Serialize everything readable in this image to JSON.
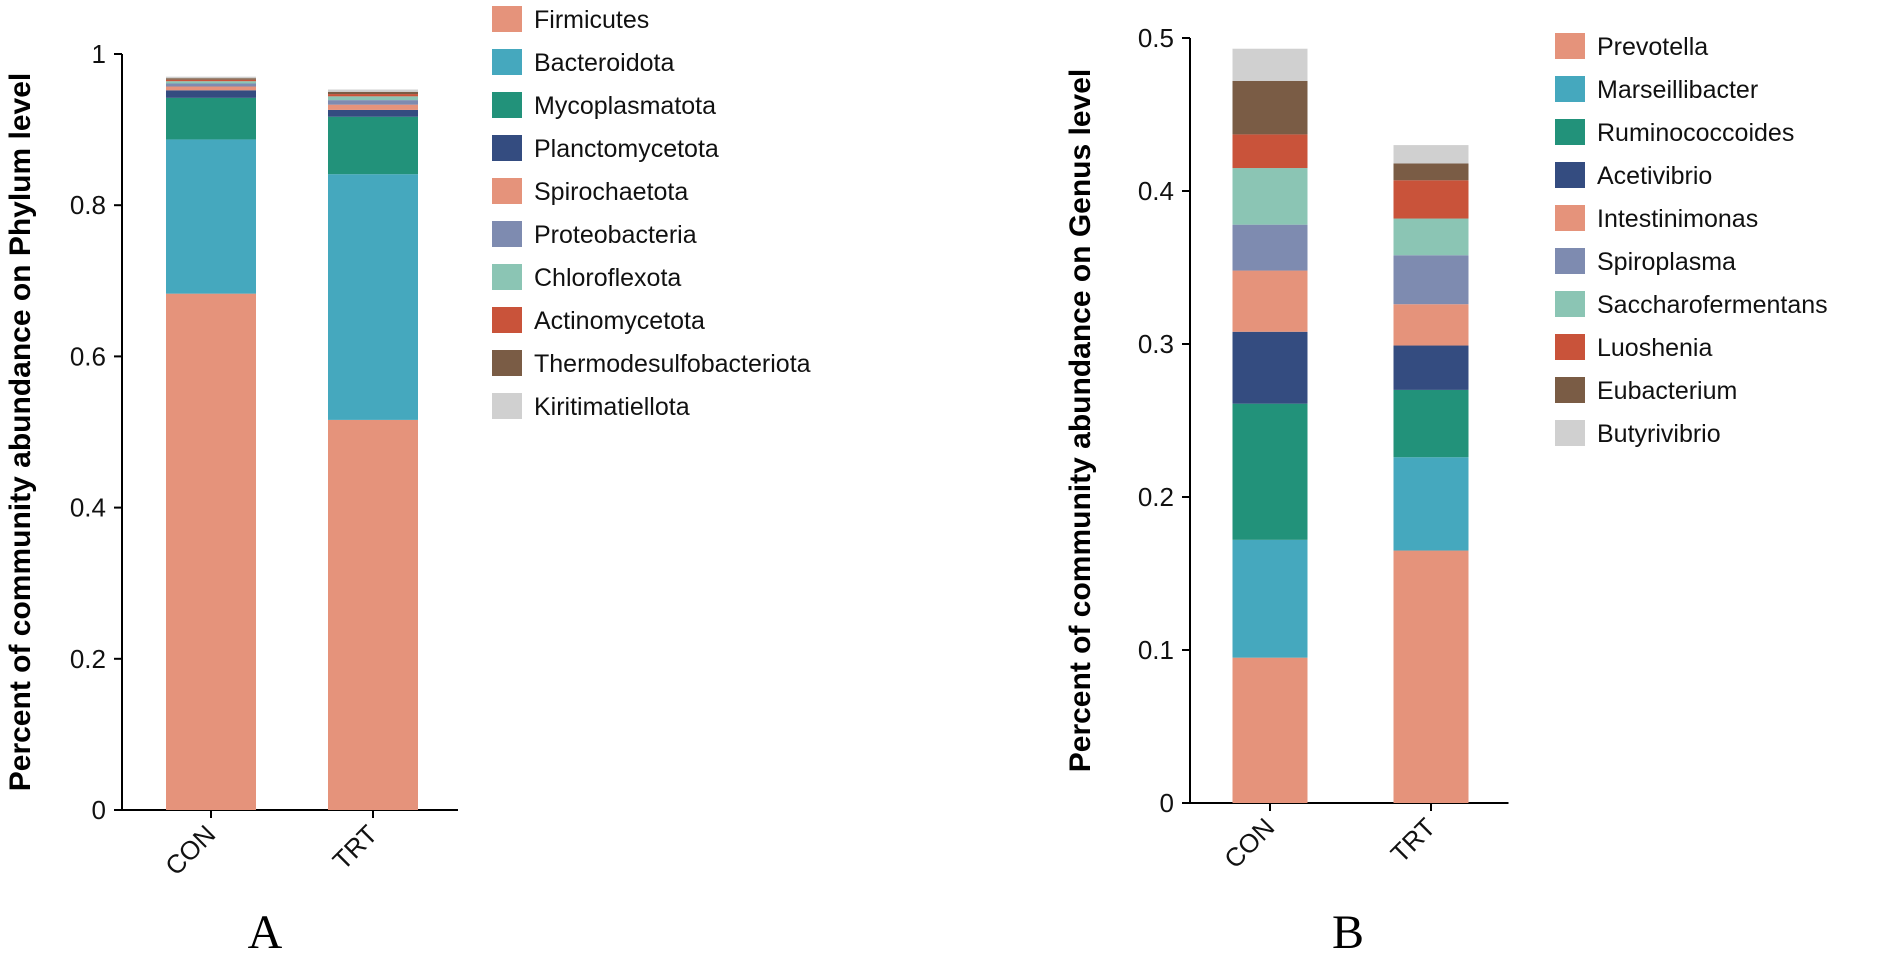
{
  "colors": {
    "Firmicutes": "#E5937B",
    "Bacteroidota": "#45A8BE",
    "Mycoplasmatota": "#22927A",
    "Planctomycetota": "#344C80",
    "Spirochaetota": "#E5937B",
    "Proteobacteria": "#7E8BB0",
    "Chloroflexota": "#8BC5B4",
    "Actinomycetota": "#C9533A",
    "Thermodesulfobacteriota": "#7A5C45",
    "Kiritimatiellota": "#D0D0D0",
    "Prevotella": "#E5937B",
    "Marseillibacter": "#45A8BE",
    "Ruminococcoides": "#22927A",
    "Acetivibrio": "#344C80",
    "Intestinimonas": "#E5937B",
    "Spiroplasma": "#7E8BB0",
    "Saccharofermentans": "#8BC5B4",
    "Luoshenia": "#C9533A",
    "Eubacterium": "#7A5C45",
    "Butyrivibrio": "#D0D0D0"
  },
  "chart_data": [
    {
      "panel": "A",
      "type": "bar",
      "stacked": true,
      "categories": [
        "CON",
        "TRT"
      ],
      "ylabel": "Percent of community abundance on Phylum level",
      "xlabel": "",
      "ylim": [
        0,
        1
      ],
      "yticks": [
        0,
        0.2,
        0.4,
        0.6,
        0.8,
        1
      ],
      "ytick_labels": [
        "0",
        "0.2",
        "0.4",
        "0.6",
        "0.8",
        "1"
      ],
      "legend_position": "right",
      "series": [
        {
          "name": "Firmicutes",
          "values": [
            0.683,
            0.516
          ]
        },
        {
          "name": "Bacteroidota",
          "values": [
            0.204,
            0.325
          ]
        },
        {
          "name": "Mycoplasmatota",
          "values": [
            0.055,
            0.076
          ]
        },
        {
          "name": "Planctomycetota",
          "values": [
            0.01,
            0.009
          ]
        },
        {
          "name": "Spirochaetota",
          "values": [
            0.005,
            0.007
          ]
        },
        {
          "name": "Proteobacteria",
          "values": [
            0.004,
            0.006
          ]
        },
        {
          "name": "Chloroflexota",
          "values": [
            0.003,
            0.005
          ]
        },
        {
          "name": "Actinomycetota",
          "values": [
            0.002,
            0.003
          ]
        },
        {
          "name": "Thermodesulfobacteriota",
          "values": [
            0.002,
            0.003
          ]
        },
        {
          "name": "Kiritimatiellota",
          "values": [
            0.002,
            0.003
          ]
        }
      ]
    },
    {
      "panel": "B",
      "type": "bar",
      "stacked": true,
      "categories": [
        "CON",
        "TRT"
      ],
      "ylabel": "Percent of community abundance on Genus level",
      "xlabel": "",
      "ylim": [
        0,
        0.5
      ],
      "yticks": [
        0,
        0.1,
        0.2,
        0.3,
        0.4,
        0.5
      ],
      "ytick_labels": [
        "0",
        "0.1",
        "0.2",
        "0.3",
        "0.4",
        "0.5"
      ],
      "legend_position": "right",
      "series": [
        {
          "name": "Prevotella",
          "values": [
            0.095,
            0.165
          ]
        },
        {
          "name": "Marseillibacter",
          "values": [
            0.077,
            0.061
          ]
        },
        {
          "name": "Ruminococcoides",
          "values": [
            0.089,
            0.044
          ]
        },
        {
          "name": "Acetivibrio",
          "values": [
            0.047,
            0.029
          ]
        },
        {
          "name": "Intestinimonas",
          "values": [
            0.04,
            0.027
          ]
        },
        {
          "name": "Spiroplasma",
          "values": [
            0.03,
            0.032
          ]
        },
        {
          "name": "Saccharofermentans",
          "values": [
            0.037,
            0.024
          ]
        },
        {
          "name": "Luoshenia",
          "values": [
            0.022,
            0.025
          ]
        },
        {
          "name": "Eubacterium",
          "values": [
            0.035,
            0.011
          ]
        },
        {
          "name": "Butyrivibrio",
          "values": [
            0.021,
            0.012
          ]
        }
      ]
    }
  ],
  "panel_labels": [
    "A",
    "B"
  ]
}
